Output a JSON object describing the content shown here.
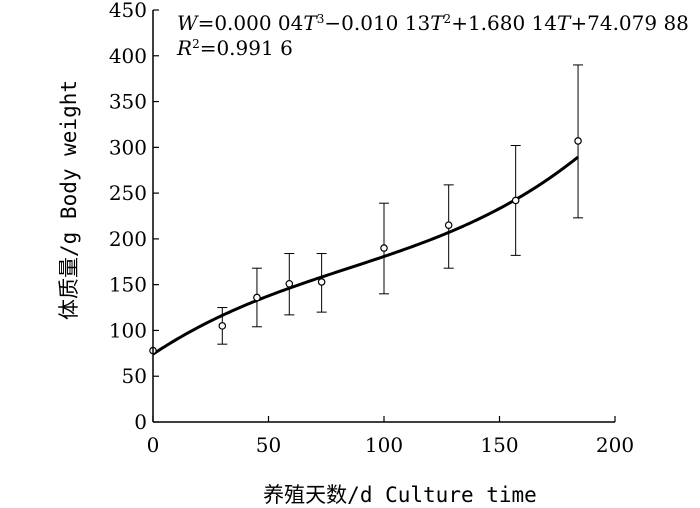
{
  "chart_data": {
    "type": "scatter",
    "title": "",
    "xlabel": "养殖天数/d Culture time",
    "ylabel": "体质量/g Body weight",
    "xlim": [
      0,
      200
    ],
    "ylim": [
      0,
      450
    ],
    "xticks": [
      0,
      50,
      100,
      150,
      200
    ],
    "yticks": [
      0,
      50,
      100,
      150,
      200,
      250,
      300,
      350,
      400,
      450
    ],
    "grid": false,
    "equation": {
      "part1": "=0.000 04",
      "part2": "−0.010 13",
      "part3": "+1.680 14",
      "part4": "+74.079 88",
      "r2": "=0.991 6"
    },
    "fit": {
      "model": "cubic",
      "coefficients": [
        4e-05,
        -0.01013,
        1.68014,
        74.07988
      ],
      "x_range": [
        0,
        184
      ]
    },
    "series": [
      {
        "points": [
          {
            "x": 0,
            "y": 78
          },
          {
            "x": 30,
            "y": 105,
            "err_low": 85,
            "err_high": 125
          },
          {
            "x": 45,
            "y": 136,
            "err_low": 104,
            "err_high": 168
          },
          {
            "x": 59,
            "y": 151,
            "err_low": 117,
            "err_high": 184
          },
          {
            "x": 73,
            "y": 153,
            "err_low": 120,
            "err_high": 184
          },
          {
            "x": 100,
            "y": 190,
            "err_low": 140,
            "err_high": 239
          },
          {
            "x": 128,
            "y": 215,
            "err_low": 168,
            "err_high": 259
          },
          {
            "x": 157,
            "y": 242,
            "err_low": 182,
            "err_high": 302
          },
          {
            "x": 184,
            "y": 307,
            "err_low": 223,
            "err_high": 390
          }
        ]
      }
    ]
  }
}
